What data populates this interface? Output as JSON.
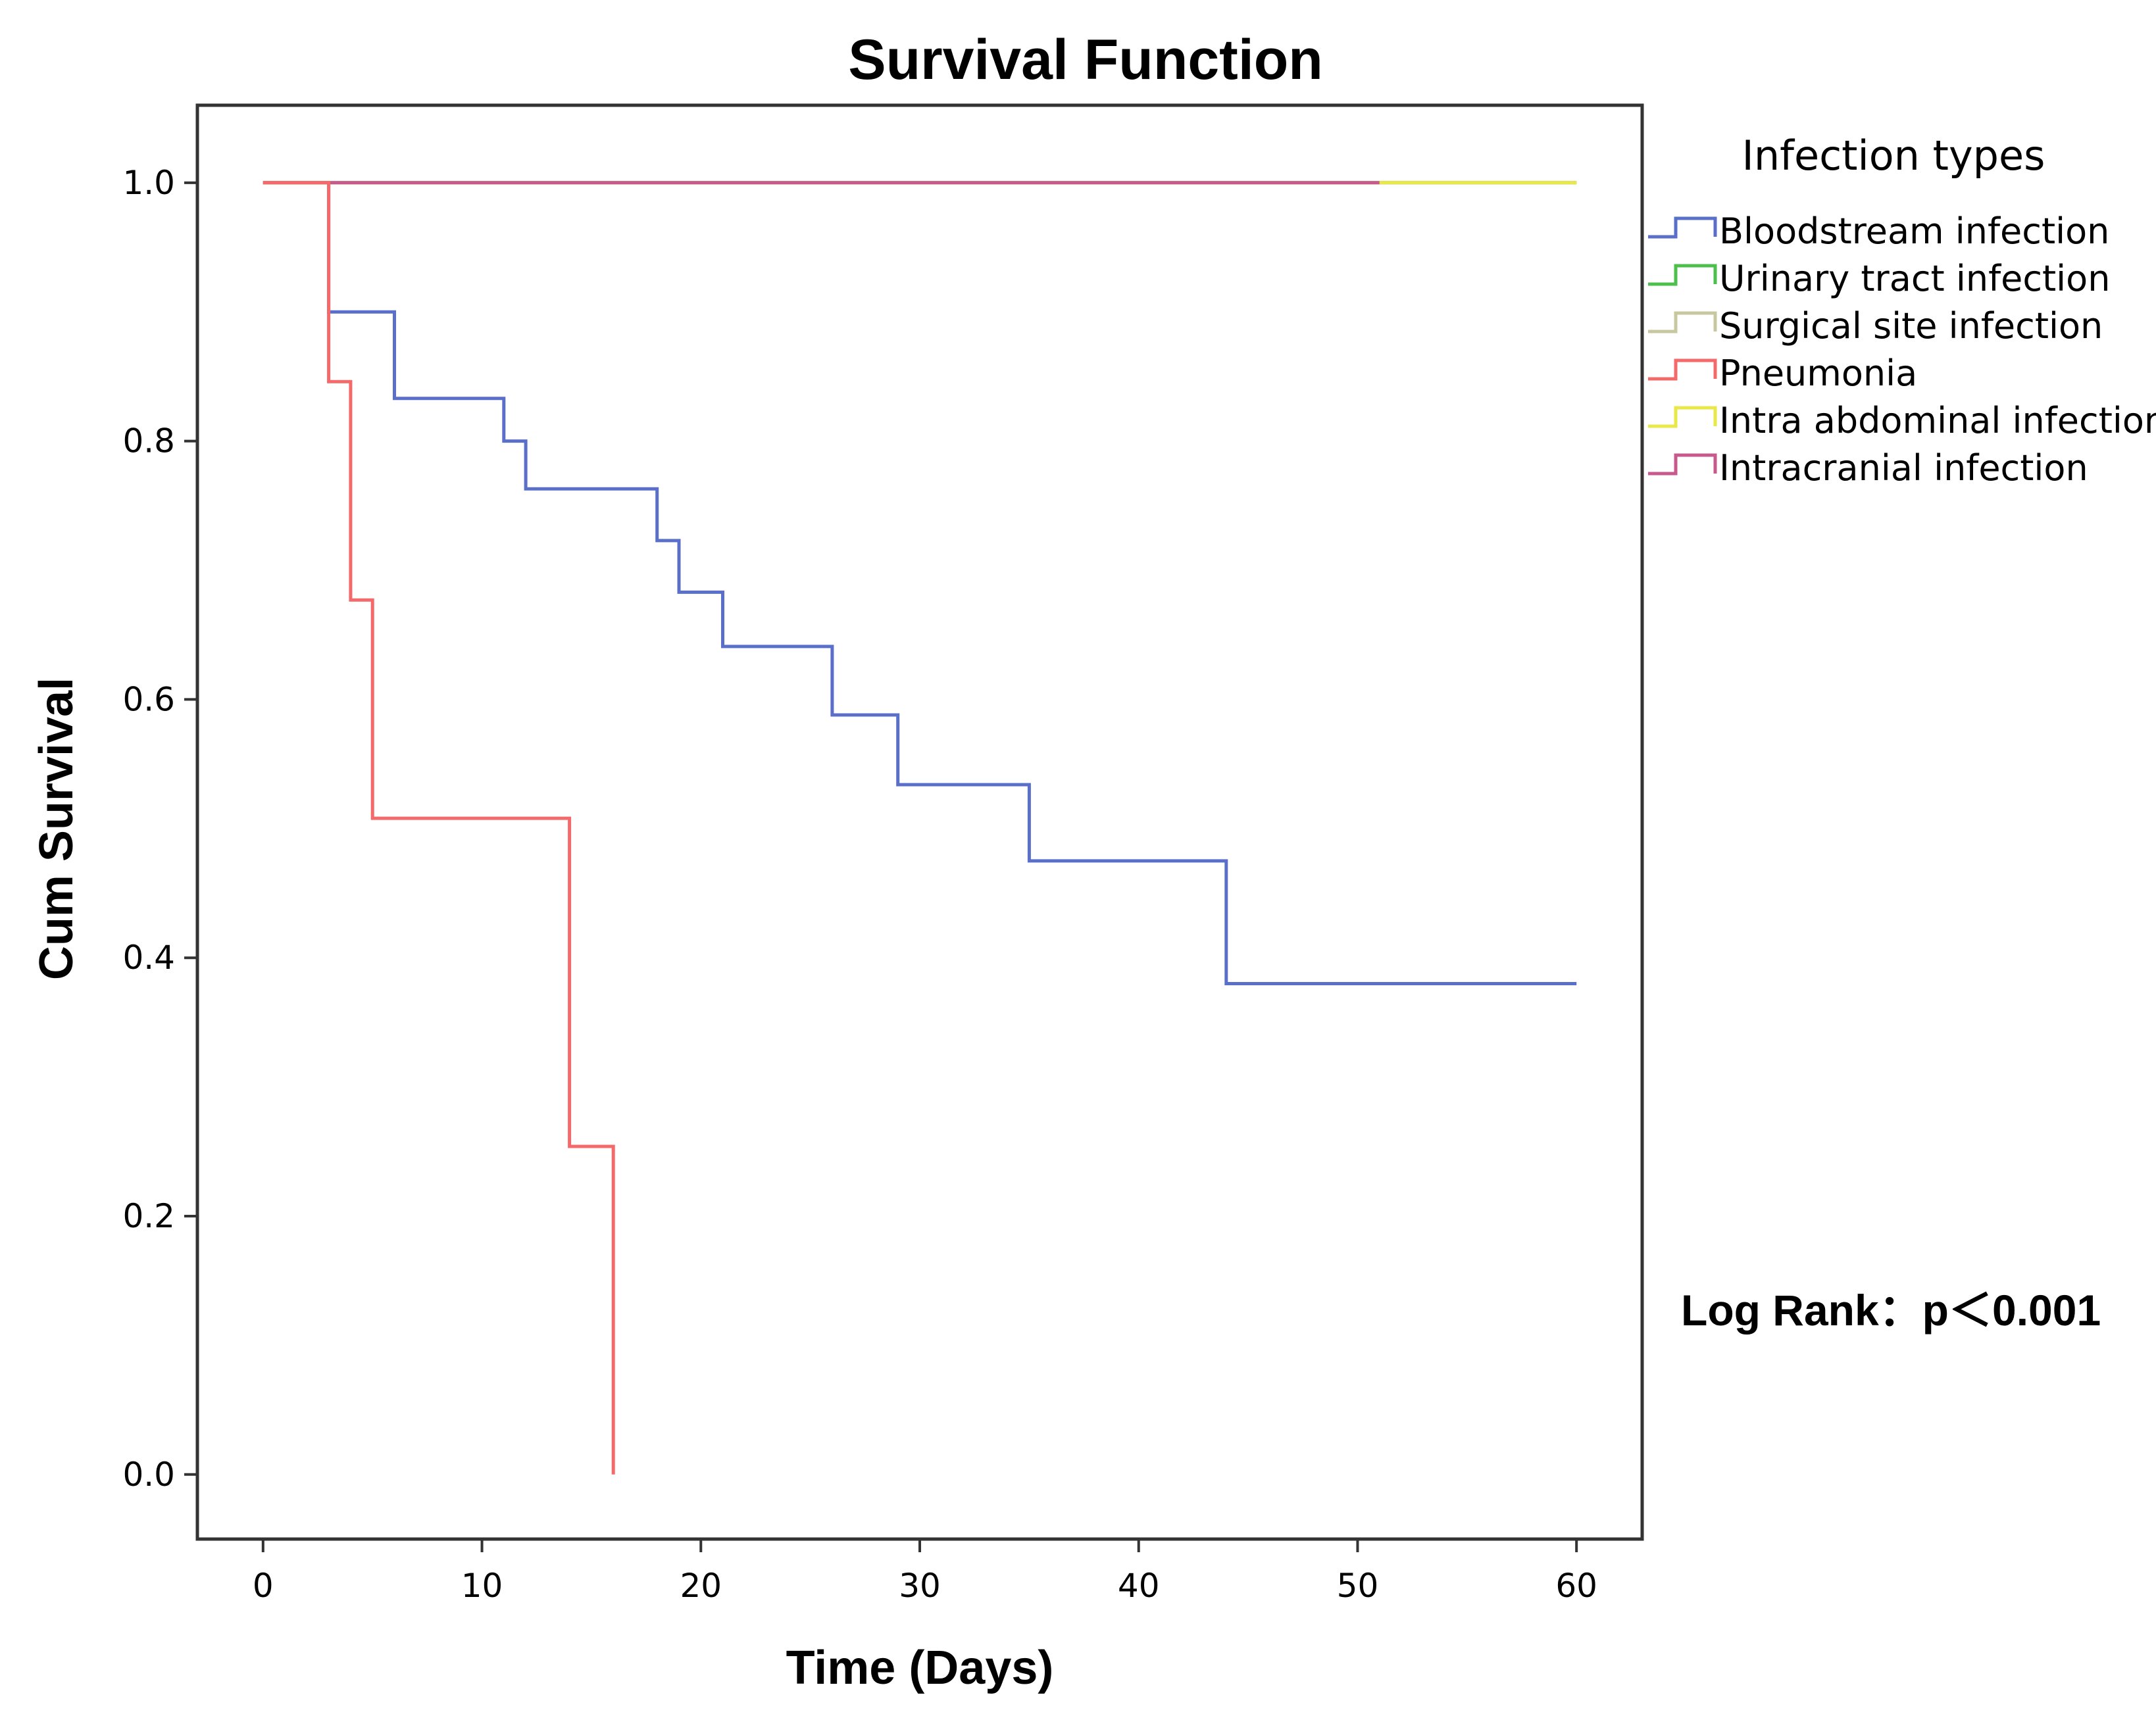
{
  "chart_data": {
    "type": "line",
    "subtype": "kaplan-meier step",
    "title": "Survival Function",
    "xlabel": "Time (Days)",
    "ylabel": "Cum Survival",
    "xlim": [
      -3,
      63
    ],
    "ylim": [
      -0.05,
      1.06
    ],
    "xticks": [
      0,
      10,
      20,
      30,
      40,
      50,
      60
    ],
    "xtick_labels": [
      "0",
      "10",
      "20",
      "30",
      "40",
      "50",
      "60"
    ],
    "yticks": [
      0.0,
      0.2,
      0.4,
      0.6,
      0.8,
      1.0
    ],
    "ytick_labels": [
      "0.0",
      "0.2",
      "0.4",
      "0.6",
      "0.8",
      "1.0"
    ],
    "grid": false,
    "legend": {
      "title": "Infection types",
      "position": "right"
    },
    "annotation": "Log Rank：p＜0.001",
    "series": [
      {
        "name": "Bloodstream infection",
        "color": "#5a6fc9",
        "x": [
          0,
          3,
          3,
          6,
          6,
          11,
          11,
          12,
          12,
          18,
          18,
          19,
          19,
          21,
          21,
          26,
          26,
          29,
          29,
          35,
          35,
          44,
          44,
          60
        ],
        "y": [
          1.0,
          1.0,
          0.9,
          0.9,
          0.833,
          0.833,
          0.8,
          0.8,
          0.763,
          0.763,
          0.723,
          0.723,
          0.683,
          0.683,
          0.641,
          0.641,
          0.588,
          0.588,
          0.534,
          0.534,
          0.475,
          0.475,
          0.38,
          0.38
        ]
      },
      {
        "name": "Urinary tract infection",
        "color": "#4cbf4c",
        "x": [
          0,
          60
        ],
        "y": [
          1.0,
          1.0
        ]
      },
      {
        "name": "Surgical site infection",
        "color": "#c8c8a0",
        "x": [
          0,
          60
        ],
        "y": [
          1.0,
          1.0
        ]
      },
      {
        "name": "Pneumonia",
        "color": "#f46a6a",
        "x": [
          0,
          3,
          3,
          4,
          4,
          5,
          5,
          14,
          14,
          16,
          16
        ],
        "y": [
          1.0,
          1.0,
          0.846,
          0.846,
          0.677,
          0.677,
          0.508,
          0.508,
          0.254,
          0.254,
          0.0
        ]
      },
      {
        "name": "Intra abdominal infection",
        "color": "#e8e84a",
        "x": [
          0,
          60
        ],
        "y": [
          1.0,
          1.0
        ]
      },
      {
        "name": "Intracranial infection",
        "color": "#c8598c",
        "x": [
          0,
          51
        ],
        "y": [
          1.0,
          1.0
        ]
      }
    ]
  }
}
